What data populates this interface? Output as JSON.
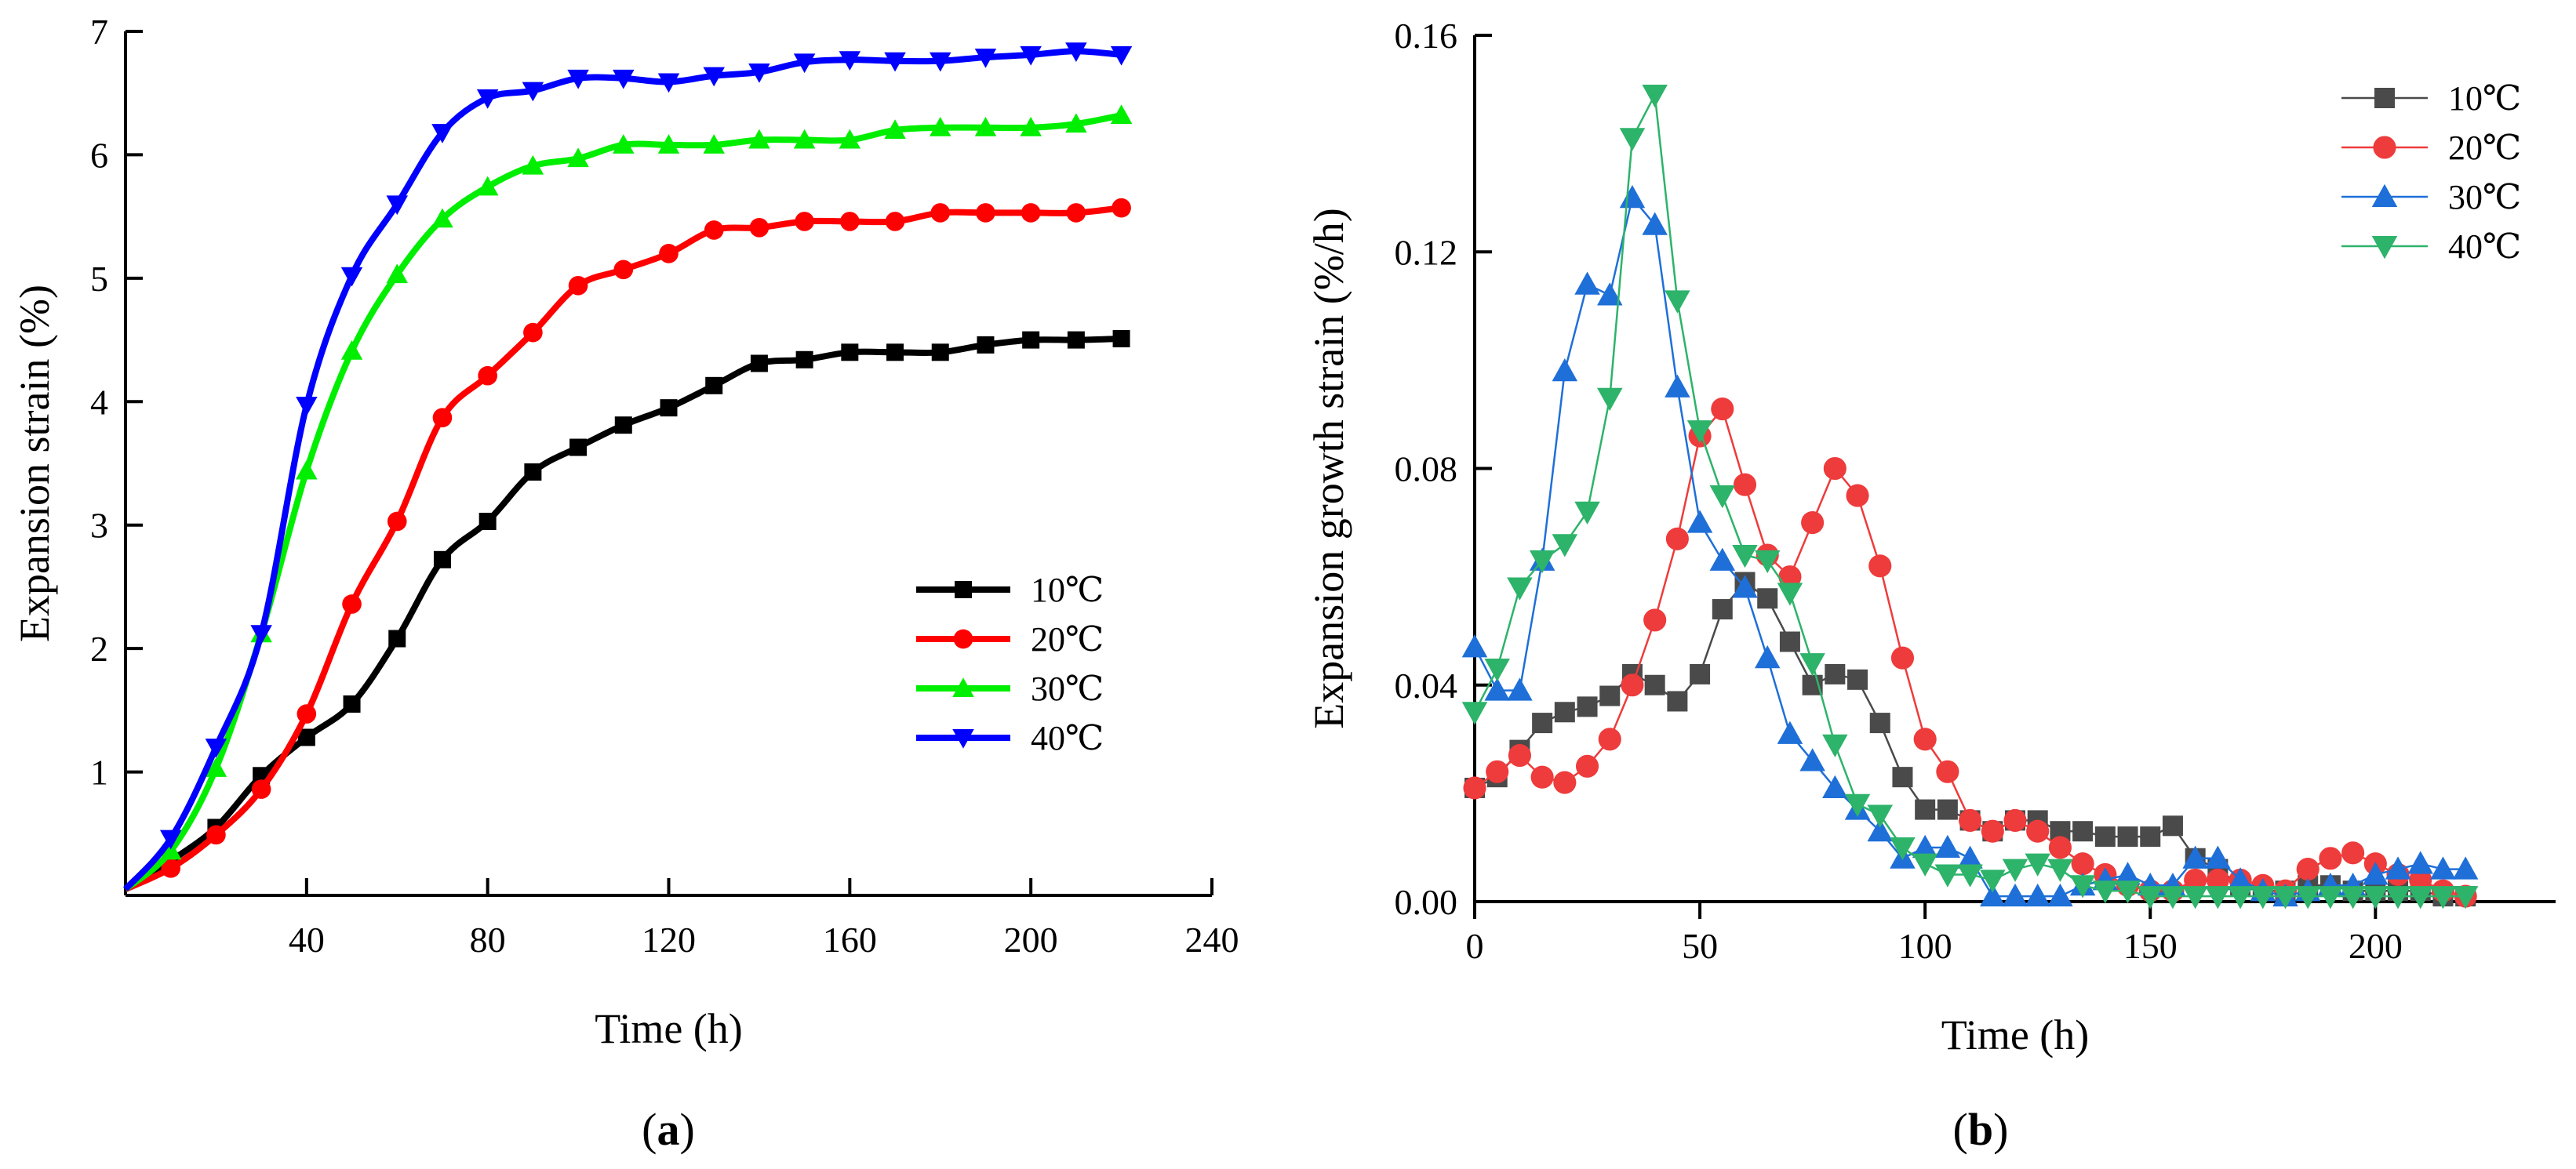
{
  "chart_data": [
    {
      "type": "line",
      "panel_label_open": "(",
      "panel_label_letter": "a",
      "panel_label_close": ")",
      "xlabel": "Time (h)",
      "ylabel": "Expansion strain (%)",
      "xlim": [
        0,
        240
      ],
      "ylim": [
        0,
        7
      ],
      "xticks": [
        40,
        80,
        120,
        160,
        200,
        240
      ],
      "yticks": [
        1,
        2,
        3,
        4,
        5,
        6,
        7
      ],
      "legend_position": "center-right",
      "x": [
        0,
        10,
        20,
        30,
        40,
        50,
        60,
        70,
        80,
        90,
        100,
        110,
        120,
        130,
        140,
        150,
        160,
        170,
        180,
        190,
        200,
        210,
        220
      ],
      "series": [
        {
          "name": "10℃",
          "color": "#000000",
          "marker": "square",
          "values": [
            0.05,
            0.28,
            0.55,
            0.97,
            1.28,
            1.55,
            2.08,
            2.72,
            3.03,
            3.43,
            3.63,
            3.81,
            3.95,
            4.13,
            4.31,
            4.34,
            4.4,
            4.4,
            4.4,
            4.46,
            4.5,
            4.5,
            4.51
          ]
        },
        {
          "name": "20℃",
          "color": "#ff0000",
          "marker": "circle",
          "values": [
            0.05,
            0.22,
            0.49,
            0.86,
            1.47,
            2.36,
            3.03,
            3.87,
            4.21,
            4.56,
            4.94,
            5.07,
            5.2,
            5.39,
            5.41,
            5.46,
            5.46,
            5.46,
            5.53,
            5.53,
            5.53,
            5.53,
            5.57
          ]
        },
        {
          "name": "30℃",
          "color": "#00ee00",
          "marker": "triangle-up",
          "values": [
            0.05,
            0.36,
            1.03,
            2.12,
            3.44,
            4.41,
            5.03,
            5.48,
            5.74,
            5.91,
            5.97,
            6.08,
            6.08,
            6.08,
            6.12,
            6.12,
            6.12,
            6.2,
            6.22,
            6.22,
            6.22,
            6.25,
            6.32
          ]
        },
        {
          "name": "40℃",
          "color": "#0000ff",
          "marker": "triangle-down",
          "values": [
            0.05,
            0.46,
            1.2,
            2.12,
            3.97,
            5.02,
            5.6,
            6.18,
            6.46,
            6.52,
            6.62,
            6.62,
            6.59,
            6.64,
            6.67,
            6.75,
            6.77,
            6.76,
            6.76,
            6.79,
            6.81,
            6.84,
            6.81
          ]
        }
      ]
    },
    {
      "type": "line",
      "panel_label_open": "(",
      "panel_label_letter": "b",
      "panel_label_close": ")",
      "xlabel": "Time (h)",
      "ylabel": "Expansion growth strain (%/h)",
      "xlim": [
        0,
        240
      ],
      "ylim": [
        0,
        0.16
      ],
      "xticks": [
        0,
        50,
        100,
        150,
        200
      ],
      "yticks": [
        0.0,
        0.04,
        0.08,
        0.12,
        0.16
      ],
      "ytick_labels": [
        "0.00",
        "0.04",
        "0.08",
        "0.12",
        "0.16"
      ],
      "legend_position": "top-right",
      "x": [
        0,
        5,
        10,
        15,
        20,
        25,
        30,
        35,
        40,
        45,
        50,
        55,
        60,
        65,
        70,
        75,
        80,
        85,
        90,
        95,
        100,
        105,
        110,
        115,
        120,
        125,
        130,
        135,
        140,
        145,
        150,
        155,
        160,
        165,
        170,
        175,
        180,
        185,
        190,
        195,
        200,
        205,
        210,
        215,
        220
      ],
      "series": [
        {
          "name": "10℃",
          "color": "#4a4a4a",
          "marker": "square",
          "values": [
            0.021,
            0.023,
            0.028,
            0.033,
            0.035,
            0.036,
            0.038,
            0.042,
            0.04,
            0.037,
            0.042,
            0.054,
            0.059,
            0.056,
            0.048,
            0.04,
            0.042,
            0.041,
            0.033,
            0.023,
            0.017,
            0.017,
            0.015,
            0.013,
            0.015,
            0.015,
            0.013,
            0.013,
            0.012,
            0.012,
            0.012,
            0.014,
            0.008,
            0.006,
            0.003,
            0.002,
            0.002,
            0.003,
            0.003,
            0.002,
            0.002,
            0.002,
            0.002,
            0.001,
            0.001
          ]
        },
        {
          "name": "20℃",
          "color": "#ee3b3b",
          "marker": "circle",
          "values": [
            0.021,
            0.024,
            0.027,
            0.023,
            0.022,
            0.025,
            0.03,
            0.04,
            0.052,
            0.067,
            0.086,
            0.091,
            0.077,
            0.064,
            0.06,
            0.07,
            0.08,
            0.075,
            0.062,
            0.045,
            0.03,
            0.024,
            0.015,
            0.013,
            0.015,
            0.013,
            0.01,
            0.007,
            0.005,
            0.003,
            0.002,
            0.002,
            0.004,
            0.004,
            0.004,
            0.003,
            0.002,
            0.006,
            0.008,
            0.009,
            0.007,
            0.005,
            0.004,
            0.002,
            0.001
          ]
        },
        {
          "name": "30℃",
          "color": "#1e6fd8",
          "marker": "triangle-up",
          "values": [
            0.047,
            0.039,
            0.039,
            0.063,
            0.098,
            0.114,
            0.112,
            0.13,
            0.125,
            0.095,
            0.07,
            0.063,
            0.058,
            0.045,
            0.031,
            0.026,
            0.021,
            0.017,
            0.013,
            0.008,
            0.01,
            0.01,
            0.008,
            0.001,
            0.001,
            0.001,
            0.001,
            0.003,
            0.004,
            0.005,
            0.003,
            0.003,
            0.008,
            0.008,
            0.004,
            0.002,
            0.001,
            0.002,
            0.003,
            0.003,
            0.005,
            0.006,
            0.007,
            0.006,
            0.006
          ]
        },
        {
          "name": "40℃",
          "color": "#2db36a",
          "marker": "triangle-down",
          "values": [
            0.035,
            0.043,
            0.058,
            0.063,
            0.066,
            0.072,
            0.093,
            0.141,
            0.149,
            0.111,
            0.087,
            0.075,
            0.064,
            0.063,
            0.057,
            0.044,
            0.029,
            0.018,
            0.016,
            0.01,
            0.007,
            0.005,
            0.005,
            0.004,
            0.006,
            0.007,
            0.006,
            0.003,
            0.002,
            0.002,
            0.001,
            0.001,
            0.001,
            0.001,
            0.001,
            0.001,
            0.001,
            0.001,
            0.001,
            0.001,
            0.001,
            0.001,
            0.001,
            0.001,
            0.001
          ]
        }
      ]
    }
  ]
}
